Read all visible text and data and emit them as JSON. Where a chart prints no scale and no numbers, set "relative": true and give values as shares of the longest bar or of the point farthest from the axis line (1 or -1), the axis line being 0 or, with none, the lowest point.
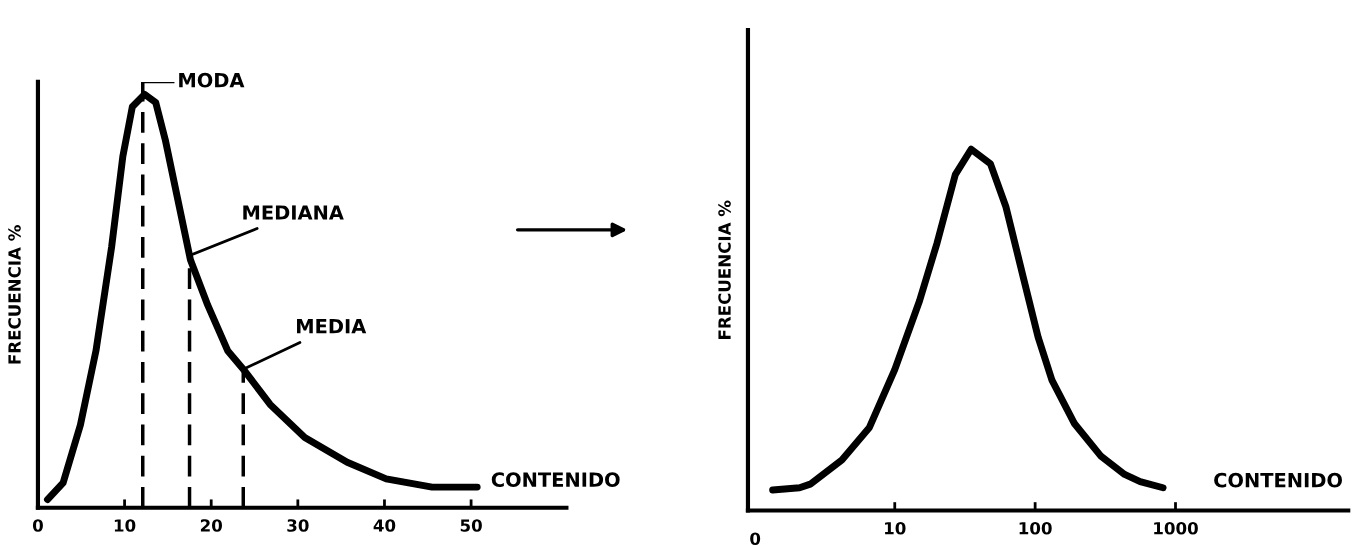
{
  "chart_data": [
    {
      "type": "line",
      "relative": true,
      "ylabel": "FRECUENCIA %",
      "xlabel": "CONTENIDO",
      "xlim": [
        0,
        61
      ],
      "xticks": [
        0,
        10,
        20,
        30,
        40,
        50
      ],
      "grid": false,
      "legend": false,
      "line_style": "solid",
      "marker": "none",
      "series": [
        {
          "color": "#000000",
          "x": [
            1.1,
            2.9,
            4.9,
            6.7,
            8.5,
            9.8,
            10.9,
            12.3,
            13.6,
            14.7,
            16.1,
            17.6,
            19.6,
            21.9,
            23.9,
            26.8,
            30.8,
            35.7,
            40.2,
            45.5,
            50.7
          ],
          "values": [
            0.02,
            0.06,
            0.2,
            0.38,
            0.63,
            0.85,
            0.97,
            1.0,
            0.98,
            0.89,
            0.75,
            0.6,
            0.49,
            0.38,
            0.33,
            0.25,
            0.17,
            0.11,
            0.07,
            0.05,
            0.05
          ]
        }
      ],
      "ref_lines": [
        {
          "axis": "x",
          "value": 12.1,
          "label": "MODA",
          "color": "#000000",
          "line_style": "dashed"
        },
        {
          "axis": "x",
          "value": 17.5,
          "label": "MEDIANA",
          "color": "#000000",
          "line_style": "dashed"
        },
        {
          "axis": "x",
          "value": 23.7,
          "label": "MEDIA",
          "color": "#000000",
          "line_style": "dashed"
        }
      ]
    },
    {
      "type": "line",
      "relative": true,
      "log": "x",
      "ylabel": "FRECUENCIA %",
      "xlabel": "CONTENIDO",
      "xlim": [
        0.9,
        17000
      ],
      "xticks": [
        10,
        100,
        1000
      ],
      "annotations": [
        "0"
      ],
      "grid": false,
      "legend": false,
      "line_style": "solid",
      "marker": "none",
      "series": [
        {
          "color": "#000000",
          "x": [
            1.35,
            2.1,
            2.5,
            4.2,
            6.6,
            10,
            15,
            20,
            27,
            35,
            48,
            62,
            83,
            105,
            132,
            191,
            295,
            434,
            560,
            815
          ],
          "values": [
            0.057,
            0.063,
            0.073,
            0.14,
            0.23,
            0.39,
            0.58,
            0.74,
            0.93,
            1.0,
            0.96,
            0.84,
            0.64,
            0.48,
            0.36,
            0.24,
            0.15,
            0.1,
            0.08,
            0.063
          ]
        }
      ]
    }
  ]
}
